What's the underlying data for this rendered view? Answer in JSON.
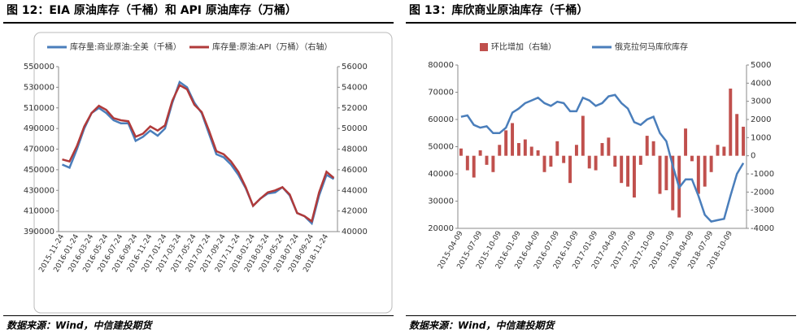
{
  "chart_data": [
    {
      "type": "line",
      "title": "图 12：EIA 原油库存（千桶）和 API 原油库存（万桶）",
      "source": "数据来源：Wind，中信建投期货",
      "categories": [
        "2015-11-24",
        null,
        "2016-01-24",
        null,
        "2016-03-24",
        null,
        "2016-05-24",
        null,
        "2016-07-24",
        null,
        "2016-09-24",
        null,
        "2016-11-24",
        null,
        "2017-01-24",
        null,
        "2017-03-24",
        null,
        "2017-05-24",
        null,
        "2017-07-24",
        null,
        "2017-09-24",
        null,
        "2017-11-24",
        null,
        "2018-01-24",
        null,
        "2018-03-24",
        null,
        "2018-05-24",
        null,
        "2018-07-24",
        null,
        "2018-09-24",
        null,
        "2018-11-24",
        null
      ],
      "series": [
        {
          "name": "库存量:商业原油:全美（千桶）",
          "color": "#4a7ebb",
          "values": [
            455000,
            452000,
            470000,
            490000,
            505000,
            510000,
            505000,
            498000,
            495000,
            495000,
            478000,
            482000,
            488000,
            483000,
            490000,
            515000,
            535000,
            530000,
            515000,
            505000,
            485000,
            465000,
            462000,
            455000,
            445000,
            432000,
            415000,
            422000,
            427000,
            428000,
            433000,
            425000,
            408000,
            405000,
            398000,
            425000,
            445000,
            441000
          ]
        },
        {
          "name": "库存量:原油:API（万桶）（右轴）",
          "color": "#b03a3a",
          "axis": "y2",
          "values": [
            47000,
            46800,
            48300,
            50200,
            51500,
            52200,
            51800,
            51000,
            50800,
            50700,
            49200,
            49500,
            50200,
            49800,
            50300,
            52700,
            54200,
            53800,
            52300,
            51600,
            49800,
            47800,
            47500,
            46800,
            45800,
            44300,
            42500,
            43200,
            43800,
            44000,
            44300,
            43600,
            41800,
            41500,
            41000,
            43800,
            45800,
            45200
          ]
        }
      ],
      "ylim": [
        390000,
        550000
      ],
      "yticks": [
        390000,
        410000,
        430000,
        450000,
        470000,
        490000,
        510000,
        530000,
        550000
      ],
      "y2lim": [
        40000,
        56000
      ],
      "y2ticks": [
        40000,
        42000,
        44000,
        46000,
        48000,
        50000,
        52000,
        54000,
        56000
      ]
    },
    {
      "type": "bar-line",
      "title": "图 13：库欣商业原油库存（千桶）",
      "source": "数据来源：Wind，中信建投期货",
      "categories": [
        "2015-04-09",
        null,
        null,
        "2015-07-09",
        null,
        null,
        "2015-10-09",
        null,
        null,
        "2016-01-09",
        null,
        null,
        "2016-04-09",
        null,
        null,
        "2016-07-09",
        null,
        null,
        "2016-10-09",
        null,
        null,
        "2017-01-09",
        null,
        null,
        "2017-04-09",
        null,
        null,
        "2017-07-09",
        null,
        null,
        "2017-10-09",
        null,
        null,
        "2018-01-09",
        null,
        null,
        "2018-04-09",
        null,
        null,
        "2018-07-09",
        null,
        null,
        "2018-10-09",
        null,
        null
      ],
      "series": [
        {
          "name": "环比增加（右轴）",
          "color": "#c0504d",
          "axis": "y2",
          "kind": "bar",
          "values": [
            400,
            -800,
            -1200,
            300,
            -500,
            -900,
            600,
            1400,
            1800,
            700,
            900,
            500,
            300,
            -900,
            -600,
            800,
            -400,
            -1500,
            600,
            2200,
            -700,
            -800,
            700,
            1000,
            -600,
            -1500,
            -1700,
            -2300,
            -500,
            1100,
            800,
            -2100,
            -1900,
            -3000,
            -3400,
            1500,
            -300,
            -2100,
            -1700,
            -900,
            600,
            500,
            3700,
            2300,
            1600
          ]
        },
        {
          "name": "俄克拉何马库欣库存",
          "color": "#4a7ebb",
          "kind": "line",
          "values": [
            61000,
            61500,
            58000,
            57000,
            57500,
            55000,
            55000,
            57000,
            62500,
            64000,
            66000,
            67000,
            68000,
            66000,
            65000,
            66500,
            66000,
            63000,
            63000,
            68000,
            67000,
            65000,
            66000,
            68500,
            69000,
            66000,
            64000,
            59000,
            58000,
            60000,
            61000,
            55000,
            52000,
            43000,
            35000,
            38000,
            38000,
            32000,
            25000,
            22500,
            23000,
            23500,
            32000,
            40000,
            44000
          ]
        }
      ],
      "ylim": [
        20000,
        80000
      ],
      "yticks": [
        20000,
        30000,
        40000,
        50000,
        60000,
        70000,
        80000
      ],
      "y2lim": [
        -4000,
        5000
      ],
      "y2ticks": [
        -4000,
        -3000,
        -2000,
        -1000,
        0,
        1000,
        2000,
        3000,
        4000,
        5000
      ]
    }
  ]
}
